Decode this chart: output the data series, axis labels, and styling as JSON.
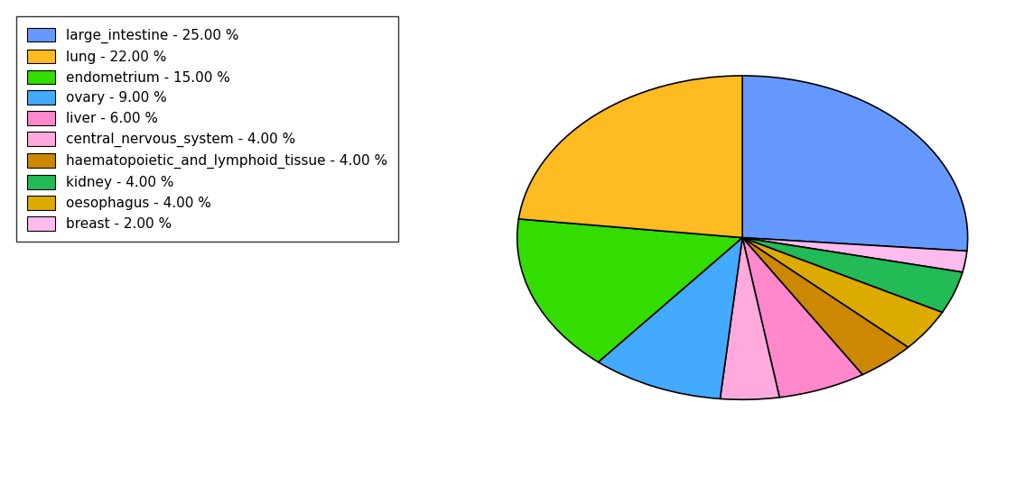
{
  "labels": [
    "large_intestine",
    "lung",
    "endometrium",
    "ovary",
    "liver",
    "central_nervous_system",
    "haematopoietic_and_lymphoid_tissue",
    "kidney",
    "oesophagus",
    "breast"
  ],
  "values": [
    25.0,
    22.0,
    15.0,
    9.0,
    6.0,
    4.0,
    4.0,
    4.0,
    4.0,
    2.0
  ],
  "colors": [
    "#6699ff",
    "#ffbb22",
    "#33dd00",
    "#44aaff",
    "#ff88cc",
    "#ffaadd",
    "#cc8800",
    "#22bb55",
    "#ddaa00",
    "#ffbbee"
  ],
  "legend_labels": [
    "large_intestine - 25.00 %",
    "lung - 22.00 %",
    "endometrium - 15.00 %",
    "ovary - 9.00 %",
    "liver - 6.00 %",
    "central_nervous_system - 4.00 %",
    "haematopoietic_and_lymphoid_tissue - 4.00 %",
    "kidney - 4.00 %",
    "oesophagus - 4.00 %",
    "breast - 2.00 %"
  ],
  "pie_order": [
    0,
    9,
    7,
    8,
    6,
    4,
    5,
    3,
    2,
    1
  ],
  "startangle": 90,
  "figsize": [
    11.34,
    5.38
  ],
  "dpi": 100,
  "aspect_ratio": 0.72
}
